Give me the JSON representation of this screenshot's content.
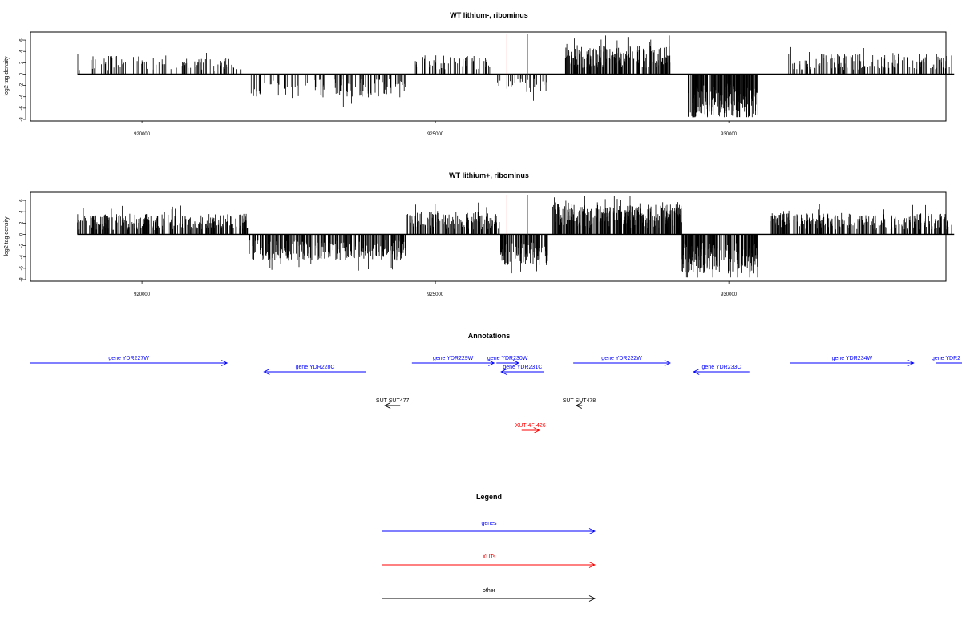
{
  "colors": {
    "gene": "#0000ff",
    "xut": "#ff0000",
    "other": "#000000",
    "marker": "#ff0000",
    "bar": "#000000"
  },
  "panels": [
    {
      "title": "WT lithium-, ribominus",
      "ylabel": "log2 tag density"
    },
    {
      "title": "WT lithium+, ribominus",
      "ylabel": "log2 tag density"
    }
  ],
  "chart_data": [
    {
      "type": "bar",
      "title": "WT lithium-, ribominus",
      "ylabel": "log2 tag density",
      "xlim": [
        918100,
        933700
      ],
      "ylim": [
        -8,
        7
      ],
      "x_ticks": [
        920000,
        925000,
        930000
      ],
      "x_tick_labels": [
        "920000",
        "925000",
        "930000"
      ],
      "y_ticks": [
        6,
        4,
        2,
        0,
        -2,
        -4,
        -6,
        -8
      ],
      "y_tick_labels": [
        "6",
        "4",
        "2",
        "0",
        "-2",
        "-4",
        "-6",
        "-8"
      ],
      "baseline_range": [
        918900,
        933840
      ],
      "marker_lines_x": [
        926220,
        926570
      ],
      "segments": [
        {
          "start": 918900,
          "end": 920550,
          "sign": 1,
          "mean": 2.0,
          "density": 0.4
        },
        {
          "start": 920580,
          "end": 921700,
          "sign": 1,
          "mean": 1.8,
          "density": 0.6
        },
        {
          "start": 921850,
          "end": 924500,
          "sign": -1,
          "mean": 2.5,
          "density": 0.55
        },
        {
          "start": 924650,
          "end": 926000,
          "sign": 1,
          "mean": 2.0,
          "density": 0.6
        },
        {
          "start": 926050,
          "end": 926900,
          "sign": -1,
          "mean": 2.0,
          "density": 0.5
        },
        {
          "start": 927200,
          "end": 929000,
          "sign": 1,
          "mean": 3.0,
          "density": 1.8
        },
        {
          "start": 929300,
          "end": 930500,
          "sign": -1,
          "mean": 4.8,
          "density": 2.5
        },
        {
          "start": 931000,
          "end": 933800,
          "sign": 1,
          "mean": 2.2,
          "density": 0.8
        }
      ]
    },
    {
      "type": "bar",
      "title": "WT lithium+, ribominus",
      "ylabel": "log2 tag density",
      "xlim": [
        918100,
        933700
      ],
      "ylim": [
        -8,
        7
      ],
      "x_ticks": [
        920000,
        925000,
        930000
      ],
      "x_tick_labels": [
        "920000",
        "925000",
        "930000"
      ],
      "y_ticks": [
        6,
        4,
        2,
        0,
        -2,
        -4,
        -6,
        -8
      ],
      "y_tick_labels": [
        "6",
        "4",
        "2",
        "0",
        "-2",
        "-4",
        "-6",
        "-8"
      ],
      "baseline_range": [
        918900,
        933840
      ],
      "marker_lines_x": [
        926220,
        926570
      ],
      "segments": [
        {
          "start": 918900,
          "end": 921800,
          "sign": 1,
          "mean": 2.2,
          "density": 1.4
        },
        {
          "start": 921800,
          "end": 924500,
          "sign": -1,
          "mean": 2.8,
          "density": 1.4
        },
        {
          "start": 924500,
          "end": 926100,
          "sign": 1,
          "mean": 2.4,
          "density": 1.4
        },
        {
          "start": 926100,
          "end": 926900,
          "sign": -1,
          "mean": 3.4,
          "density": 1.8
        },
        {
          "start": 927000,
          "end": 929200,
          "sign": 1,
          "mean": 3.2,
          "density": 2.2
        },
        {
          "start": 929200,
          "end": 930500,
          "sign": -1,
          "mean": 4.2,
          "density": 2.2
        },
        {
          "start": 930700,
          "end": 933800,
          "sign": 1,
          "mean": 2.3,
          "density": 1.4
        }
      ]
    }
  ],
  "annotations": {
    "title": "Annotations",
    "features": [
      {
        "label": "gene YDR227W",
        "type": "gene",
        "start": 918100,
        "end": 921450,
        "strand": "+",
        "row": 0
      },
      {
        "label": "gene YDR228C",
        "type": "gene",
        "start": 922080,
        "end": 923820,
        "strand": "-",
        "row": 1
      },
      {
        "label": "gene YDR229W",
        "type": "gene",
        "start": 924600,
        "end": 926000,
        "strand": "+",
        "row": 0
      },
      {
        "label": "gene YDR230W",
        "type": "gene",
        "start": 926040,
        "end": 926420,
        "strand": "+",
        "row": 0
      },
      {
        "label": "gene YDR231C",
        "type": "gene",
        "start": 926120,
        "end": 926850,
        "strand": "-",
        "row": 1
      },
      {
        "label": "gene YDR232W",
        "type": "gene",
        "start": 927350,
        "end": 929000,
        "strand": "+",
        "row": 0
      },
      {
        "label": "gene YDR233C",
        "type": "gene",
        "start": 929400,
        "end": 930350,
        "strand": "-",
        "row": 1
      },
      {
        "label": "gene YDR234W",
        "type": "gene",
        "start": 931050,
        "end": 933150,
        "strand": "+",
        "row": 0
      },
      {
        "label": "gene YDR2",
        "type": "gene",
        "start": 933530,
        "end": 934500,
        "strand": "+",
        "row": 0
      },
      {
        "label": "SUT SUT477",
        "type": "other",
        "start": 924140,
        "end": 924400,
        "strand": "-",
        "row": 2
      },
      {
        "label": "SUT SUT478",
        "type": "other",
        "start": 927400,
        "end": 927500,
        "strand": "-",
        "row": 2
      },
      {
        "label": "XUT 4F-426",
        "type": "xut",
        "start": 926470,
        "end": 926770,
        "strand": "+",
        "row": 3
      }
    ]
  },
  "legend": {
    "title": "Legend",
    "items": [
      {
        "label": "genes",
        "type": "gene"
      },
      {
        "label": "XUTs",
        "type": "xut"
      },
      {
        "label": "other",
        "type": "other"
      }
    ]
  }
}
